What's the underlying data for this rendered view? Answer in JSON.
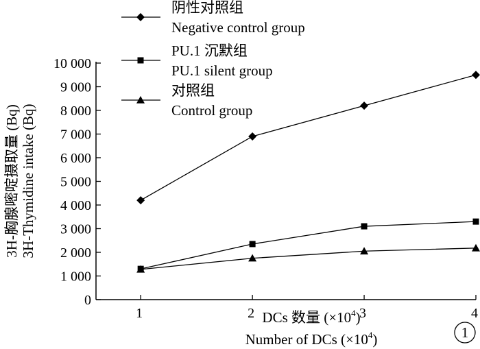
{
  "chart_data": {
    "type": "line",
    "x": [
      1,
      2,
      3,
      4
    ],
    "xticks": [
      "1",
      "2",
      "3",
      "4"
    ],
    "yticks": [
      0,
      1000,
      2000,
      3000,
      4000,
      5000,
      6000,
      7000,
      8000,
      9000,
      10000
    ],
    "ytick_labels": [
      "0",
      "1 000",
      "2 000",
      "3 000",
      "4 000",
      "5 000",
      "6 000",
      "7 000",
      "8 000",
      "9 000",
      "10 000"
    ],
    "xlim": [
      0.6,
      4
    ],
    "ylim": [
      0,
      10000
    ],
    "xlabel_cn": "DCs 数量 (×10",
    "xlabel_en": "Number of DCs (×10",
    "xlabel_exp": "4",
    "xlabel_close": ")",
    "ylabel_cn": "3H-胸腺嘧啶摄取量 (Bq)",
    "ylabel_en": "3H-Thymidine intake (Bq)",
    "panel_label": "1",
    "legend_position": "top-left",
    "series": [
      {
        "name_cn": "阴性对照组",
        "name_en": "Negative control group",
        "marker": "diamond",
        "values": [
          4200,
          6900,
          8200,
          9500
        ]
      },
      {
        "name_cn": "PU.1 沉默组",
        "name_en": "PU.1 silent group",
        "marker": "square",
        "values": [
          1300,
          2350,
          3100,
          3300
        ]
      },
      {
        "name_cn": "对照组",
        "name_en": "Control group",
        "marker": "triangle",
        "values": [
          1280,
          1750,
          2050,
          2180
        ]
      }
    ]
  }
}
